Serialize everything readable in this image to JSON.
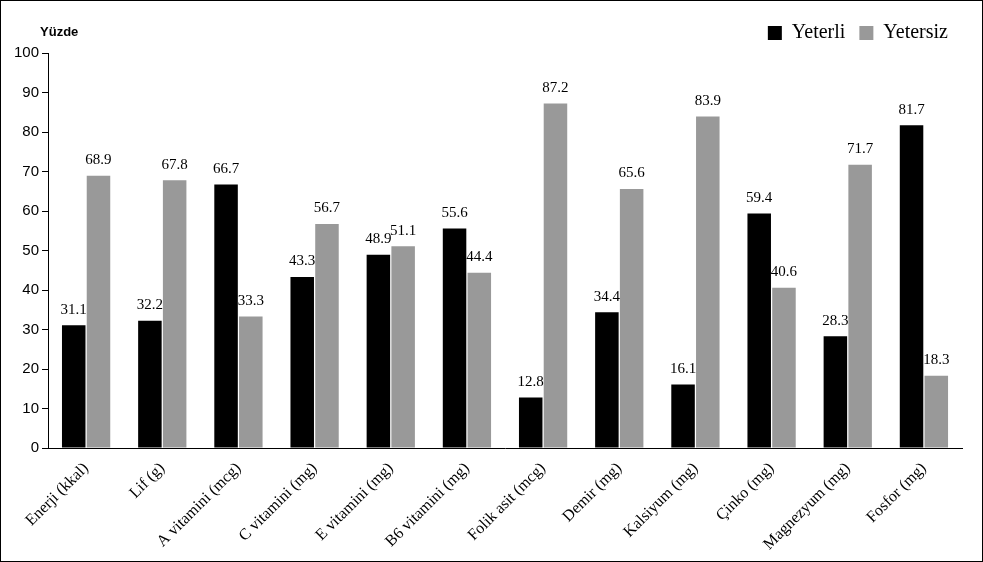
{
  "chart_data": {
    "type": "bar",
    "ylabel": "Yüzde",
    "categories": [
      "Enerji (kkal)",
      "Lif (g)",
      "A vitamini (mcg)",
      "C vitamini (mg)",
      "E vitamini (mg)",
      "B6 vitamini (mg)",
      "Folik asit (mcg)",
      "Demir (mg)",
      "Kalsiyum (mg)",
      "Çinko (mg)",
      "Magnezyum (mg)",
      "Fosfor (mg)"
    ],
    "series": [
      {
        "name": "Yeterli",
        "color": "#000000",
        "values": [
          31.1,
          32.2,
          66.7,
          43.3,
          48.9,
          55.6,
          12.8,
          34.4,
          16.1,
          59.4,
          28.3,
          81.7
        ]
      },
      {
        "name": "Yetersiz",
        "color": "#999999",
        "values": [
          68.9,
          67.8,
          33.3,
          56.7,
          51.1,
          44.4,
          87.2,
          65.6,
          83.9,
          40.6,
          71.7,
          18.3
        ]
      }
    ],
    "ylim": [
      0,
      100
    ],
    "yticks": [
      0,
      10,
      20,
      30,
      40,
      50,
      60,
      70,
      80,
      90,
      100
    ],
    "grid": false,
    "legend": "upper right",
    "data_labels": true
  }
}
